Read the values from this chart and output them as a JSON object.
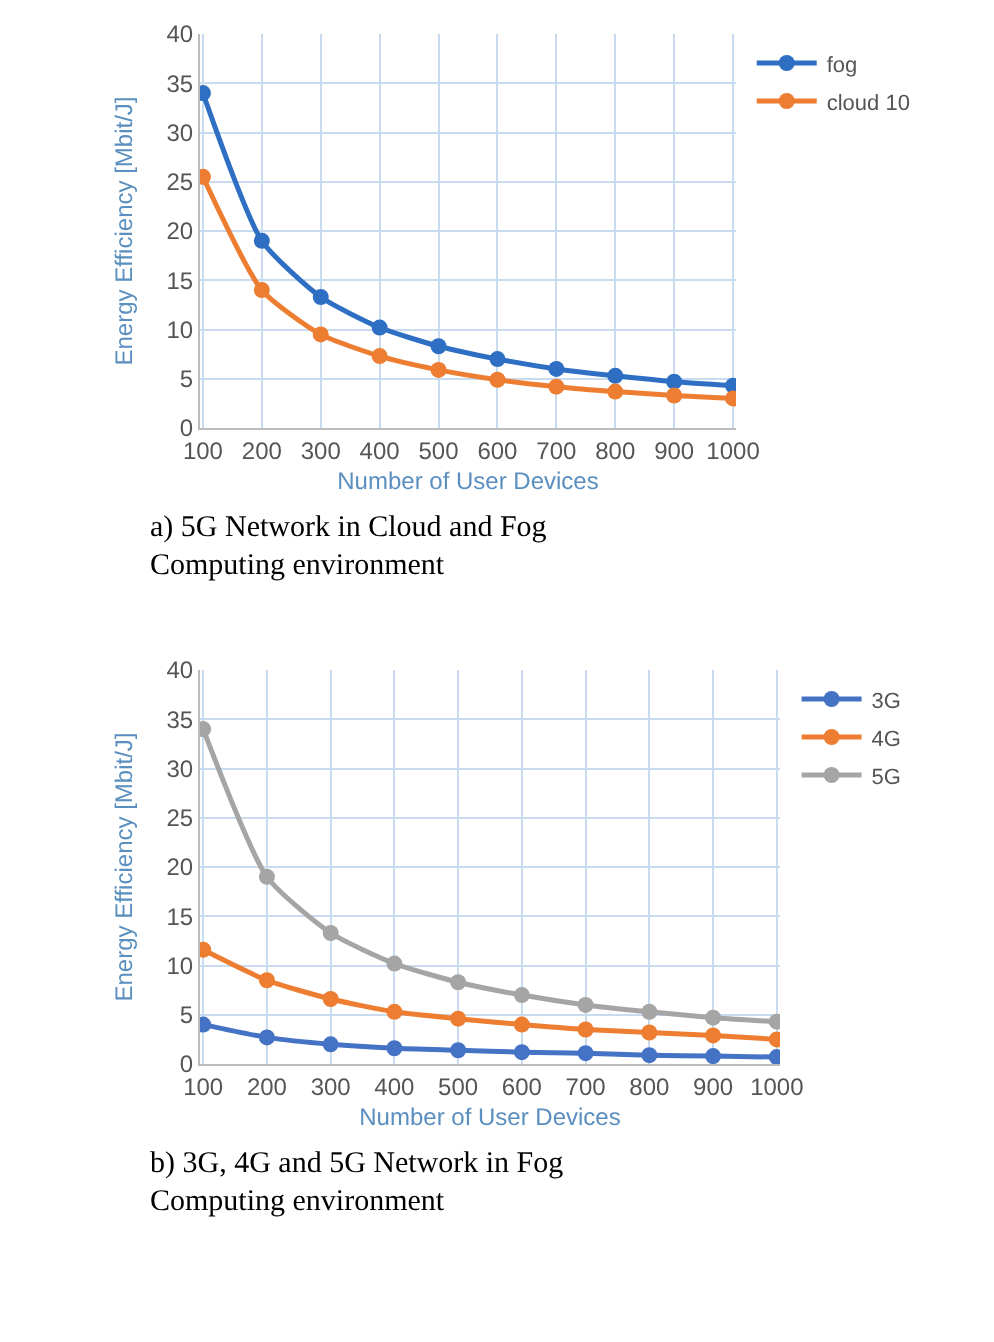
{
  "chart_data": [
    {
      "type": "line",
      "xlabel": "Number of User Devices",
      "ylabel": "Energy Efficiency [Mbit/J]",
      "categories": [
        "100",
        "200",
        "300",
        "400",
        "500",
        "600",
        "700",
        "800",
        "900",
        "1000"
      ],
      "ylim": [
        0,
        40
      ],
      "yticks": [
        0,
        5,
        10,
        15,
        20,
        25,
        30,
        35,
        40
      ],
      "grid": true,
      "legend": "top right",
      "marker": "circle",
      "line_style": "solid",
      "annotations": [
        "a) 5G Network in Cloud and Fog Computing environment"
      ],
      "series": [
        {
          "name": "fog",
          "color": "#2e6fc4",
          "values": [
            34,
            19,
            13.3,
            10.2,
            8.3,
            7,
            6,
            5.3,
            4.7,
            4.3
          ]
        },
        {
          "name": "cloud 10",
          "color": "#ed7d31",
          "values": [
            25.5,
            14,
            9.5,
            7.3,
            5.9,
            4.9,
            4.2,
            3.7,
            3.3,
            3.0
          ]
        }
      ]
    },
    {
      "type": "line",
      "xlabel": "Number of User Devices",
      "ylabel": "Energy Efficiency [Mbit/J]",
      "categories": [
        "100",
        "200",
        "300",
        "400",
        "500",
        "600",
        "700",
        "800",
        "900",
        "1000"
      ],
      "ylim": [
        0,
        40
      ],
      "yticks": [
        0,
        5,
        10,
        15,
        20,
        25,
        30,
        35,
        40
      ],
      "grid": true,
      "legend": "top right",
      "marker": "circle",
      "line_style": "solid",
      "annotations": [
        "b) 3G, 4G and 5G Network in Fog Computing environment"
      ],
      "series": [
        {
          "name": "3G",
          "color": "#4472c4",
          "values": [
            4,
            2.7,
            2,
            1.6,
            1.4,
            1.2,
            1.1,
            0.9,
            0.8,
            0.7
          ]
        },
        {
          "name": "4G",
          "color": "#ed7d31",
          "values": [
            11.6,
            8.5,
            6.6,
            5.3,
            4.6,
            4,
            3.5,
            3.2,
            2.9,
            2.5
          ]
        },
        {
          "name": "5G",
          "color": "#a5a5a5",
          "values": [
            34,
            19,
            13.3,
            10.2,
            8.3,
            7,
            6,
            5.3,
            4.7,
            4.3
          ]
        }
      ]
    }
  ]
}
